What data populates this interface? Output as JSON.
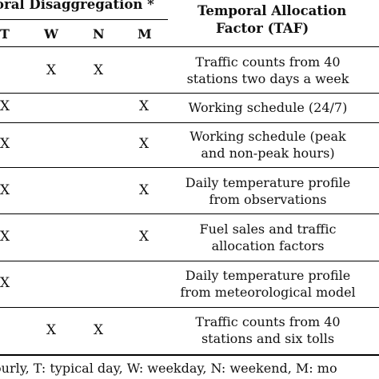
{
  "header": {
    "group_title": "oral Disaggregation *",
    "columns": [
      "T",
      "W",
      "N",
      "M"
    ],
    "taf_title_line1": "Temporal Allocation",
    "taf_title_line2": "Factor (TAF)"
  },
  "rows": [
    {
      "T": "",
      "W": "X",
      "N": "X",
      "M": "",
      "taf": [
        "Traffic counts from 40",
        "stations two days a week"
      ]
    },
    {
      "T": "X",
      "W": "",
      "N": "",
      "M": "X",
      "taf": [
        "Working schedule (24/7)"
      ]
    },
    {
      "T": "X",
      "W": "",
      "N": "",
      "M": "X",
      "taf": [
        "Working schedule (peak",
        "and non-peak hours)"
      ]
    },
    {
      "T": "X",
      "W": "",
      "N": "",
      "M": "X",
      "taf": [
        "Daily temperature profile",
        "from observations"
      ]
    },
    {
      "T": "X",
      "W": "",
      "N": "",
      "M": "X",
      "taf": [
        "Fuel sales and traffic",
        "allocation factors"
      ]
    },
    {
      "T": "X",
      "W": "",
      "N": "",
      "M": "",
      "taf": [
        "Daily temperature profile",
        "from meteorological model"
      ]
    },
    {
      "T": "",
      "W": "X",
      "N": "X",
      "M": "",
      "taf": [
        "Traffic counts from 40",
        "stations and six tolls"
      ]
    }
  ],
  "footnote": "ourly, T: typical day, W: weekday, N: weekend, M: mo"
}
